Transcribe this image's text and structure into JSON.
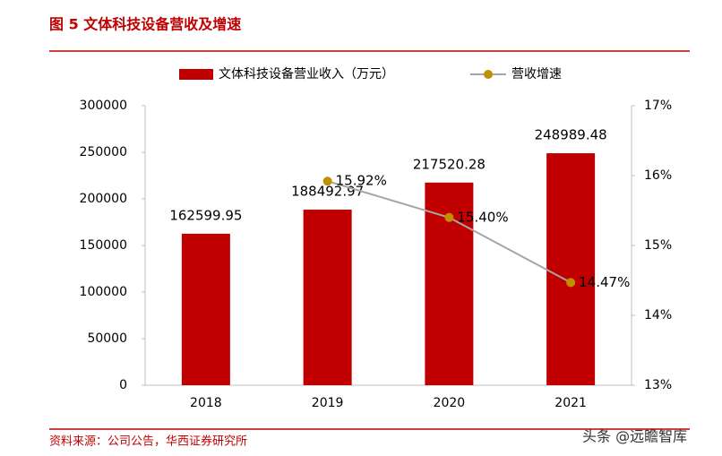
{
  "chart_data": {
    "type": "bar-line",
    "title": "图 5 文体科技设备营收及增速",
    "source": "资料来源：公司公告，华西证券研究所",
    "watermark": "头条 @远瞻智库",
    "categories": [
      "2018",
      "2019",
      "2020",
      "2021"
    ],
    "series": [
      {
        "name": "文体科技设备营业收入（万元）",
        "type": "bar",
        "color": "#c00000",
        "values": [
          162599.95,
          188492.97,
          217520.28,
          248989.48
        ]
      },
      {
        "name": "营收增速",
        "type": "line",
        "axis": "y2",
        "color": "#a6a6a6",
        "marker_color": "#bf9000",
        "values": [
          null,
          15.92,
          15.4,
          14.47
        ],
        "value_labels": [
          null,
          "15.92%",
          "15.40%",
          "14.47%"
        ]
      }
    ],
    "ylim": [
      0,
      300000
    ],
    "yticks": [
      0,
      50000,
      100000,
      150000,
      200000,
      250000,
      300000
    ],
    "y2lim": [
      13,
      17
    ],
    "y2ticks": [
      {
        "value": 13,
        "label": "13%"
      },
      {
        "value": 14,
        "label": "14%"
      },
      {
        "value": 15,
        "label": "15%"
      },
      {
        "value": 16,
        "label": "16%"
      },
      {
        "value": 17,
        "label": "17%"
      }
    ],
    "legend": "top",
    "grid": false
  }
}
